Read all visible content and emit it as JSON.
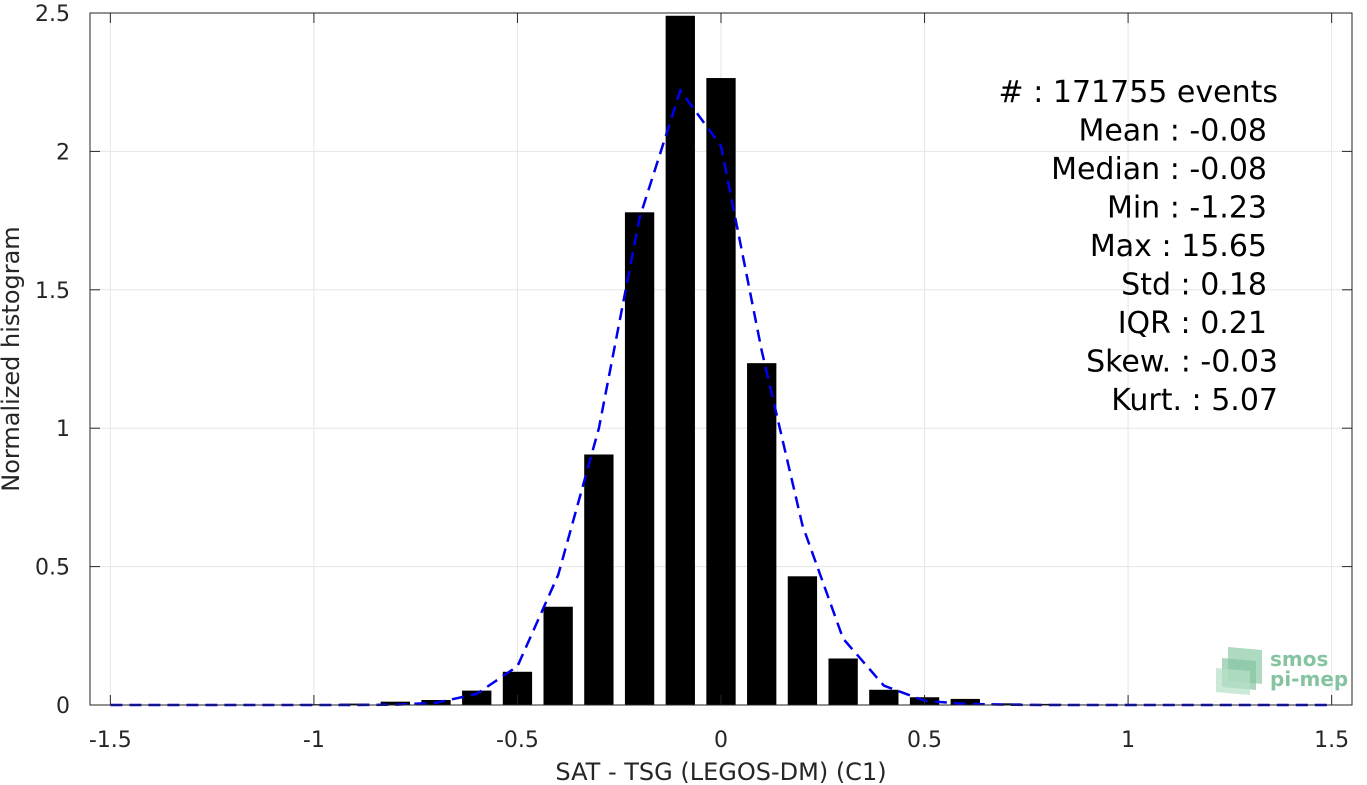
{
  "chart_data": {
    "type": "bar",
    "xlabel": "SAT - TSG (LEGOS-DM) (C1)",
    "ylabel": "Normalized histogram",
    "xlim": [
      -1.55,
      1.55
    ],
    "ylim": [
      0,
      2.5
    ],
    "xticks": [
      -1.5,
      -1,
      -0.5,
      0,
      0.5,
      1,
      1.5
    ],
    "xtick_labels": [
      "-1.5",
      "-1",
      "-0.5",
      "0",
      "0.5",
      "1",
      "1.5"
    ],
    "yticks": [
      0,
      0.5,
      1,
      1.5,
      2,
      2.5
    ],
    "ytick_labels": [
      "0",
      "0.5",
      "1",
      "1.5",
      "2",
      "2.5"
    ],
    "grid": true,
    "bar_color": "#000000",
    "bars": {
      "x": [
        -1.5,
        -1.4,
        -1.3,
        -1.2,
        -1.1,
        -1.0,
        -0.9,
        -0.8,
        -0.7,
        -0.6,
        -0.5,
        -0.4,
        -0.3,
        -0.2,
        -0.1,
        0.0,
        0.1,
        0.2,
        0.3,
        0.4,
        0.5,
        0.6,
        0.7,
        0.8,
        0.9,
        1.0,
        1.1,
        1.2,
        1.3,
        1.4,
        1.5
      ],
      "values": [
        0,
        0,
        0,
        0,
        0,
        0.003,
        0.005,
        0.012,
        0.018,
        0.052,
        0.12,
        0.355,
        0.905,
        1.78,
        2.49,
        2.265,
        1.235,
        0.465,
        0.168,
        0.055,
        0.028,
        0.022,
        0.006,
        0.004,
        0.002,
        0.001,
        0,
        0,
        0,
        0,
        0
      ]
    },
    "fit_line": {
      "style": "dashed",
      "color": "#0000ee",
      "x": [
        -1.5,
        -1.4,
        -1.3,
        -1.2,
        -1.1,
        -1.0,
        -0.9,
        -0.8,
        -0.7,
        -0.6,
        -0.5,
        -0.4,
        -0.3,
        -0.2,
        -0.1,
        0.0,
        0.1,
        0.2,
        0.3,
        0.4,
        0.5,
        0.6,
        0.7,
        0.8,
        0.9,
        1.0,
        1.1,
        1.2,
        1.3,
        1.4,
        1.5
      ],
      "y": [
        0,
        0,
        0,
        0,
        0,
        0,
        0,
        0.001,
        0.008,
        0.04,
        0.14,
        0.47,
        1.0,
        1.76,
        2.22,
        2.02,
        1.28,
        0.65,
        0.24,
        0.07,
        0.015,
        0.004,
        0.001,
        0,
        0,
        0,
        0,
        0,
        0,
        0,
        0
      ]
    },
    "annotations": [
      "#  : 171755 events",
      "Mean : -0.08",
      "Median : -0.08",
      "Min : -1.23",
      "Max : 15.65",
      "Std : 0.18",
      "IQR : 0.21",
      "Skew. : -0.03",
      "Kurt. : 5.07"
    ]
  },
  "logo": {
    "line1": "smos",
    "line2": "pi-mep",
    "color": "#86c4a1"
  }
}
